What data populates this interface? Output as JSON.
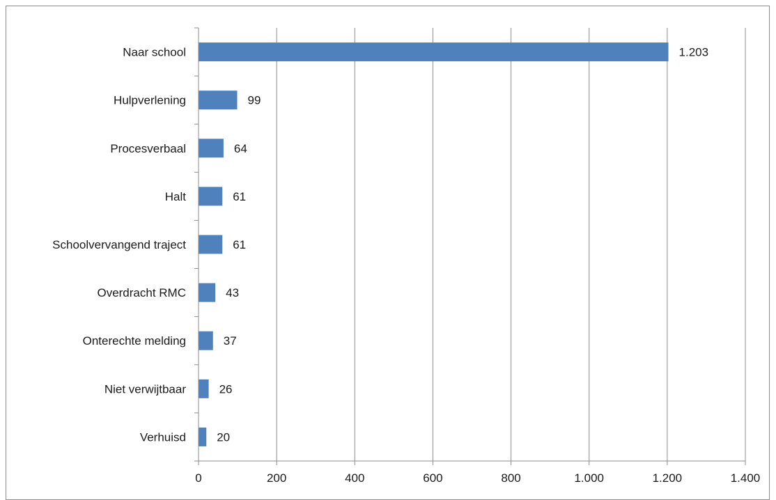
{
  "chart_data": {
    "type": "bar",
    "orientation": "horizontal",
    "categories": [
      "Naar school",
      "Hulpverlening",
      "Procesverbaal",
      "Halt",
      "Schoolvervangend traject",
      "Overdracht RMC",
      "Onterechte melding",
      "Niet verwijtbaar",
      "Verhuisd"
    ],
    "values": [
      1203,
      99,
      64,
      61,
      61,
      43,
      37,
      26,
      20
    ],
    "data_labels": [
      "1.203",
      "99",
      "64",
      "61",
      "61",
      "43",
      "37",
      "26",
      "20"
    ],
    "x_ticks": [
      0,
      200,
      400,
      600,
      800,
      1000,
      1200,
      1400
    ],
    "x_tick_labels": [
      "0",
      "200",
      "400",
      "600",
      "800",
      "1.000",
      "1.200",
      "1.400"
    ],
    "xlim": [
      0,
      1400
    ],
    "grid": true,
    "legend": "none",
    "bar_color": "#4f81bd",
    "grid_color": "#8c8c8c"
  }
}
